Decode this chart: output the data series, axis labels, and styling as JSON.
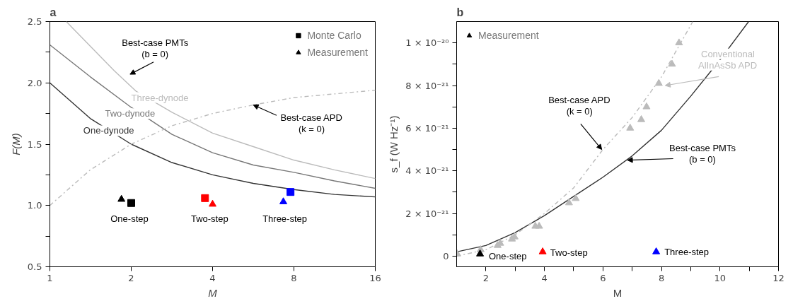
{
  "chart_data": [
    {
      "type": "line",
      "title": "a",
      "xlabel": "M",
      "ylabel": "F(M)",
      "log": "x",
      "grid": false,
      "legend": "top right",
      "xlim": [
        1,
        16
      ],
      "xticks": [
        1,
        2,
        4,
        8,
        16
      ],
      "ylim": [
        0.5,
        2.5
      ],
      "yticks": [
        {
          "value": 0.5,
          "label": "0.5"
        },
        {
          "value": 0.75,
          "label": null
        },
        {
          "value": 1,
          "label": "1.0"
        },
        {
          "value": 1.25,
          "label": null
        },
        {
          "value": 1.5,
          "label": "1.5"
        },
        {
          "value": 1.75,
          "label": null
        },
        {
          "value": 2,
          "label": "2.0"
        },
        {
          "value": 2.25,
          "label": null
        },
        {
          "value": 2.5,
          "label": "2.5"
        }
      ],
      "series": [
        {
          "name": "One-dynode",
          "color": "#333333",
          "line_style": "solid",
          "x": [
            1,
            1.41,
            2,
            2.83,
            4,
            5.66,
            8,
            11.3,
            16
          ],
          "values": [
            2.0,
            1.71,
            1.5,
            1.35,
            1.25,
            1.18,
            1.13,
            1.09,
            1.07
          ]
        },
        {
          "name": "Two-dynode",
          "color": "#777777",
          "line_style": "solid",
          "x": [
            1,
            1.41,
            2,
            2.83,
            4,
            5.66,
            8,
            11.3,
            16
          ],
          "values": [
            2.31,
            2.05,
            1.8,
            1.58,
            1.43,
            1.33,
            1.27,
            1.2,
            1.14
          ]
        },
        {
          "name": "Three-dynode",
          "color": "#bbbbbb",
          "line_style": "solid",
          "x": [
            1.15,
            1.41,
            1.73,
            2.09,
            2.83,
            4,
            5.66,
            8,
            11.3,
            16
          ],
          "values": [
            2.5,
            2.3,
            2.1,
            1.93,
            1.76,
            1.59,
            1.48,
            1.37,
            1.29,
            1.22
          ]
        },
        {
          "color": "#bbbbbb",
          "line_style": "dashdot",
          "x": [
            1,
            1.41,
            2,
            2.83,
            4,
            5.66,
            8,
            11.3,
            16
          ],
          "values": [
            1.0,
            1.29,
            1.5,
            1.65,
            1.75,
            1.82,
            1.88,
            1.91,
            1.94
          ]
        },
        {
          "name": "Monte Carlo",
          "type": "scatter",
          "marker": "square",
          "colors": [
            "#000000",
            "#ff0000",
            "#0000ff"
          ],
          "x": [
            2.0,
            3.75,
            7.77
          ],
          "values": [
            1.02,
            1.06,
            1.11
          ]
        },
        {
          "name": "Measurement",
          "type": "scatter",
          "marker": "triangle",
          "colors": [
            "#000000",
            "#ff0000",
            "#0000ff"
          ],
          "x": [
            1.84,
            4.0,
            7.31
          ],
          "values": [
            1.05,
            1.01,
            1.03
          ]
        }
      ],
      "annotations": [
        "Best-case PMTs\n(b = 0)",
        {
          "text": "Best-case APD\n(k = 0)",
          "x": 5.66,
          "y": 1.82
        },
        "One-step",
        "Two-step",
        "Three-step"
      ]
    },
    {
      "type": "line",
      "title": "b",
      "xlabel": "M",
      "ylabel": "s_f (W Hz⁻¹)",
      "grid": false,
      "legend": "top left",
      "xlim": [
        1,
        12
      ],
      "xticks": [
        {
          "value": 2,
          "label": "2"
        },
        {
          "value": 3,
          "label": null
        },
        {
          "value": 4,
          "label": "4"
        },
        {
          "value": 5,
          "label": null
        },
        {
          "value": 6,
          "label": "6"
        },
        {
          "value": 7,
          "label": null
        },
        {
          "value": 8,
          "label": "8"
        },
        {
          "value": 9,
          "label": null
        },
        {
          "value": 10,
          "label": "10"
        },
        {
          "value": 11,
          "label": null
        },
        {
          "value": 12,
          "label": "12"
        }
      ],
      "ylim": [
        -5e-22,
        1.1e-20
      ],
      "yticks": [
        {
          "value": 0,
          "label": "0"
        },
        {
          "value": 1e-21,
          "label": null
        },
        {
          "value": 2e-21,
          "label": "2 × 10⁻²¹"
        },
        {
          "value": 3e-21,
          "label": null
        },
        {
          "value": 4e-21,
          "label": "4 × 10⁻²¹"
        },
        {
          "value": 5e-21,
          "label": null
        },
        {
          "value": 6e-21,
          "label": "6 × 10⁻²¹"
        },
        {
          "value": 7e-21,
          "label": null
        },
        {
          "value": 8e-21,
          "label": "8 × 10⁻²¹"
        },
        {
          "value": 9e-21,
          "label": null
        },
        {
          "value": 1e-20,
          "label": "1 × 10⁻²⁰"
        }
      ],
      "series": [
        {
          "color": "#333333",
          "line_style": "solid",
          "x": [
            1,
            2,
            3,
            4,
            5,
            6,
            7,
            8,
            9,
            10,
            10.98
          ],
          "values": [
            2e-22,
            5e-22,
            1.1e-21,
            1.9e-21,
            2.8e-21,
            3.7e-21,
            4.7e-21,
            5.9e-21,
            7.5e-21,
            9.2e-21,
            1.1e-20
          ]
        },
        {
          "color": "#bbbbbb",
          "line_style": "dashdot",
          "x": [
            1,
            2,
            3,
            4,
            5,
            6,
            7,
            8,
            9.07
          ],
          "values": [
            0,
            3e-22,
            1e-21,
            2e-21,
            3.2e-21,
            5e-21,
            6.5e-21,
            8.4e-21,
            1.1e-20
          ]
        },
        {
          "name": "Conventional\nAlInAsSb APD",
          "type": "scatter",
          "marker": "triangle",
          "color": "#bbbbbb",
          "x": [
            1.02,
            1.82,
            2.4,
            2.49,
            2.89,
            2.98,
            3.69,
            3.82,
            4.84,
            5.07,
            6.93,
            7.31,
            7.49,
            7.91,
            8.36,
            8.6
          ],
          "values": [
            1e-22,
            3e-22,
            5e-22,
            6e-22,
            8e-22,
            9e-22,
            1.4e-21,
            1.4e-21,
            2.5e-21,
            2.7e-21,
            6e-21,
            6.4e-21,
            7e-21,
            8.1e-21,
            9e-21,
            1e-20
          ]
        },
        {
          "name": "Measurement",
          "type": "scatter",
          "marker": "triangle",
          "colors": [
            "#000000",
            "#ff0000",
            "#0000ff"
          ],
          "x": [
            1.8,
            3.94,
            7.82
          ],
          "values": [
            1e-22,
            2e-22,
            2e-22
          ]
        }
      ],
      "annotations": [
        {
          "text": "Best-case APD\n(k = 0)",
          "x": 5.96,
          "y": 5e-21
        },
        {
          "text": "Best-case PMTs\n(b = 0)",
          "x": 6.84,
          "y": 4.5e-21
        },
        "One-step",
        "Two-step",
        "Three-step"
      ]
    }
  ]
}
